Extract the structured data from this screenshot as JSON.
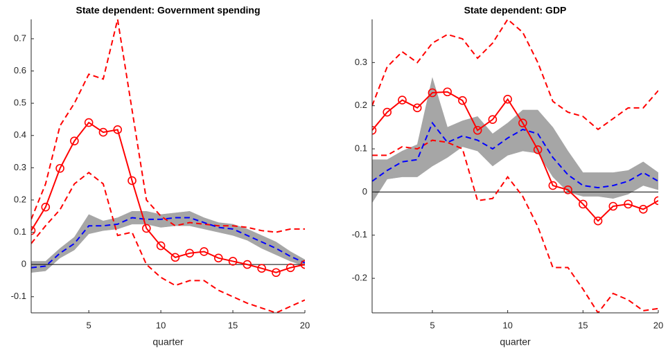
{
  "chart_data": [
    {
      "type": "line",
      "title": "State dependent: Government spending",
      "xlabel": "quarter",
      "x": [
        1,
        2,
        3,
        4,
        5,
        6,
        7,
        8,
        9,
        10,
        11,
        12,
        13,
        14,
        15,
        16,
        17,
        18,
        19,
        20
      ],
      "xlim": [
        1,
        20
      ],
      "xticks": [
        5,
        10,
        15,
        20
      ],
      "ylim": [
        -0.15,
        0.76
      ],
      "yticks": [
        -0.1,
        0,
        0.1,
        0.2,
        0.3,
        0.4,
        0.5,
        0.6,
        0.7
      ],
      "band": {
        "color": "#a6a6a6",
        "upper": [
          0.01,
          0.01,
          0.05,
          0.085,
          0.155,
          0.135,
          0.145,
          0.165,
          0.165,
          0.155,
          0.16,
          0.165,
          0.145,
          0.13,
          0.125,
          0.11,
          0.09,
          0.07,
          0.04,
          0.015
        ],
        "lower": [
          -0.025,
          -0.02,
          0.02,
          0.045,
          0.095,
          0.105,
          0.11,
          0.125,
          0.125,
          0.115,
          0.12,
          0.12,
          0.11,
          0.1,
          0.09,
          0.075,
          0.05,
          0.03,
          0.01,
          -0.005
        ]
      },
      "series": [
        {
          "color": "#ff0000",
          "style": "dashed",
          "values": [
            0.14,
            0.25,
            0.43,
            0.5,
            0.59,
            0.575,
            0.76,
            0.48,
            0.2,
            0.15,
            0.12,
            0.13,
            0.125,
            0.12,
            0.12,
            0.115,
            0.105,
            0.1,
            0.11,
            0.11
          ]
        },
        {
          "color": "#ff0000",
          "style": "dashed",
          "values": [
            0.065,
            0.12,
            0.17,
            0.25,
            0.285,
            0.25,
            0.09,
            0.1,
            0.0,
            -0.04,
            -0.065,
            -0.05,
            -0.05,
            -0.08,
            -0.1,
            -0.12,
            -0.135,
            -0.15,
            -0.13,
            -0.11
          ]
        },
        {
          "color": "#0000ff",
          "style": "dashed",
          "values": [
            -0.01,
            -0.005,
            0.035,
            0.065,
            0.12,
            0.12,
            0.125,
            0.145,
            0.14,
            0.14,
            0.145,
            0.145,
            0.13,
            0.115,
            0.11,
            0.09,
            0.07,
            0.05,
            0.025,
            0.005
          ]
        },
        {
          "color": "#ff0000",
          "style": "solid",
          "marker": "o",
          "values": [
            0.105,
            0.178,
            0.298,
            0.383,
            0.44,
            0.41,
            0.418,
            0.26,
            0.112,
            0.058,
            0.022,
            0.035,
            0.04,
            0.02,
            0.01,
            0.0,
            -0.012,
            -0.025,
            -0.01,
            0.0
          ]
        }
      ]
    },
    {
      "type": "line",
      "title": "State dependent: GDP",
      "xlabel": "quarter",
      "x": [
        1,
        2,
        3,
        4,
        5,
        6,
        7,
        8,
        9,
        10,
        11,
        12,
        13,
        14,
        15,
        16,
        17,
        18,
        19,
        20
      ],
      "xlim": [
        1,
        20
      ],
      "xticks": [
        5,
        10,
        15,
        20
      ],
      "ylim": [
        -0.28,
        0.4
      ],
      "yticks": [
        -0.2,
        -0.1,
        0,
        0.1,
        0.2,
        0.3
      ],
      "band": {
        "color": "#a6a6a6",
        "upper": [
          0.075,
          0.075,
          0.095,
          0.11,
          0.265,
          0.15,
          0.165,
          0.175,
          0.135,
          0.16,
          0.19,
          0.19,
          0.15,
          0.095,
          0.045,
          0.045,
          0.045,
          0.05,
          0.07,
          0.045
        ],
        "lower": [
          -0.025,
          0.03,
          0.035,
          0.035,
          0.06,
          0.08,
          0.105,
          0.095,
          0.06,
          0.085,
          0.095,
          0.09,
          0.035,
          0.0,
          -0.01,
          -0.01,
          -0.015,
          -0.005,
          0.015,
          0.005
        ]
      },
      "series": [
        {
          "color": "#ff0000",
          "style": "dashed",
          "values": [
            0.2,
            0.29,
            0.325,
            0.3,
            0.345,
            0.365,
            0.355,
            0.31,
            0.345,
            0.4,
            0.37,
            0.3,
            0.21,
            0.185,
            0.175,
            0.145,
            0.17,
            0.195,
            0.195,
            0.235
          ]
        },
        {
          "color": "#ff0000",
          "style": "dashed",
          "values": [
            0.085,
            0.085,
            0.105,
            0.1,
            0.12,
            0.115,
            0.1,
            -0.02,
            -0.015,
            0.035,
            -0.01,
            -0.08,
            -0.175,
            -0.175,
            -0.225,
            -0.28,
            -0.235,
            -0.25,
            -0.275,
            -0.27
          ]
        },
        {
          "color": "#0000ff",
          "style": "dashed",
          "values": [
            0.025,
            0.05,
            0.07,
            0.075,
            0.16,
            0.115,
            0.13,
            0.12,
            0.1,
            0.125,
            0.145,
            0.135,
            0.08,
            0.04,
            0.015,
            0.01,
            0.015,
            0.025,
            0.045,
            0.025
          ]
        },
        {
          "color": "#ff0000",
          "style": "solid",
          "marker": "o",
          "values": [
            0.143,
            0.185,
            0.213,
            0.195,
            0.23,
            0.232,
            0.212,
            0.143,
            0.168,
            0.215,
            0.16,
            0.098,
            0.015,
            0.005,
            -0.028,
            -0.067,
            -0.033,
            -0.028,
            -0.04,
            -0.02
          ]
        }
      ]
    }
  ]
}
